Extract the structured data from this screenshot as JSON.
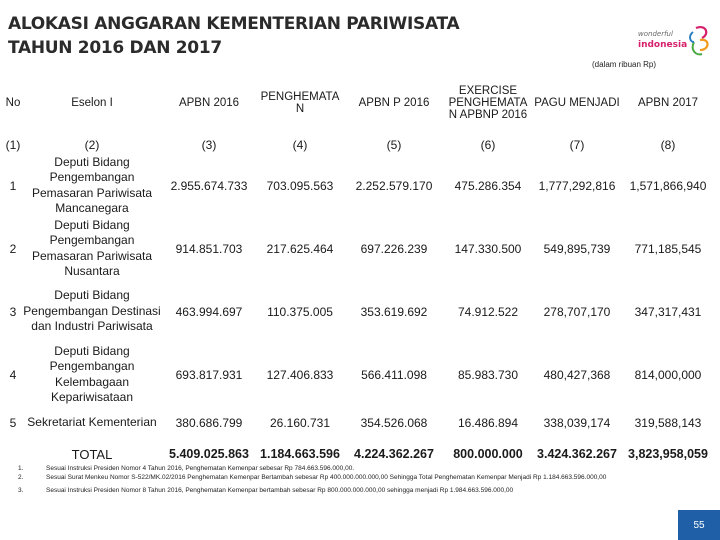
{
  "title_line1": "ALOKASI ANGGARAN KEMENTERIAN PARIWISATA",
  "title_line2": "TAHUN 2016 DAN 2017",
  "logo": {
    "top": "wonderful",
    "bottom": "indonesia"
  },
  "unit_note": "(dalam ribuan Rp)",
  "headers": [
    "No",
    "Eselon I",
    "APBN 2016",
    "PENGHEMATA N",
    "APBN P 2016",
    "EXERCISE PENGHEMATA N APBNP 2016",
    "PAGU MENJADI",
    "APBN 2017"
  ],
  "col_numbers": [
    "(1)",
    "(2)",
    "(3)",
    "(4)",
    "(5)",
    "(6)",
    "(7)",
    "(8)"
  ],
  "rows": [
    {
      "no": "1",
      "eselon": "Deputi Bidang Pengembangan Pemasaran Pariwisata Mancanegara",
      "apbn2016": "2.955.674.733",
      "penghematan": "703.095.563",
      "apbnp2016": "2.252.579.170",
      "exercise": "475.286.354",
      "pagu": "1,777,292,816",
      "apbn2017": "1,571,866,940"
    },
    {
      "no": "2",
      "eselon": "Deputi Bidang Pengembangan Pemasaran Pariwisata Nusantara",
      "apbn2016": "914.851.703",
      "penghematan": "217.625.464",
      "apbnp2016": "697.226.239",
      "exercise": "147.330.500",
      "pagu": "549,895,739",
      "apbn2017": "771,185,545"
    },
    {
      "no": "3",
      "eselon": "Deputi Bidang Pengembangan Destinasi dan Industri Pariwisata",
      "apbn2016": "463.994.697",
      "penghematan": "110.375.005",
      "apbnp2016": "353.619.692",
      "exercise": "74.912.522",
      "pagu": "278,707,170",
      "apbn2017": "347,317,431"
    },
    {
      "no": "4",
      "eselon": "Deputi Bidang Pengembangan Kelembagaan Kepariwisataan",
      "apbn2016": "693.817.931",
      "penghematan": "127.406.833",
      "apbnp2016": "566.411.098",
      "exercise": "85.983.730",
      "pagu": "480,427,368",
      "apbn2017": "814,000,000"
    },
    {
      "no": "5",
      "eselon": "Sekretariat Kementerian",
      "apbn2016": "380.686.799",
      "penghematan": "26.160.731",
      "apbnp2016": "354.526.068",
      "exercise": "16.486.894",
      "pagu": "338,039,174",
      "apbn2017": "319,588,143"
    }
  ],
  "total": {
    "label": "TOTAL",
    "apbn2016": "5.409.025.863",
    "penghematan": "1.184.663.596",
    "apbnp2016": "4.224.362.267",
    "exercise": "800.000.000",
    "pagu": "3.424.362.267",
    "apbn2017": "3,823,958,059"
  },
  "footnotes": [
    {
      "n": "1.",
      "text": "Sesuai Instruksi Presiden Nomor 4 Tahun 2016, Penghematan Kemenpar sebesar Rp 784.663.596.000,00."
    },
    {
      "n": "2.",
      "text": "Sesuai Surat Menkeu Nomor S-522/MK.02/2016 Penghematan Kemenpar Bertambah sebesar Rp 400.000.000.000,00 Sehingga Total Penghematan Kemenpar Menjadi Rp 1.184.663.596.000,00"
    },
    {
      "n": "3.",
      "text": "Sesuai Instruksi Presiden Nomor 8 Tahun 2016, Penghematan Kemenpar bertambah sebesar Rp 800.000.000.000,00 sehingga menjadi Rp 1.984.663.596.000,00"
    }
  ],
  "page_number": "55",
  "colors": {
    "logo_pink": "#d6206b",
    "logo_orange": "#f29a1d",
    "logo_green": "#4aa843",
    "logo_blue": "#2a7fc1",
    "page_badge": "#1f5fa8"
  }
}
